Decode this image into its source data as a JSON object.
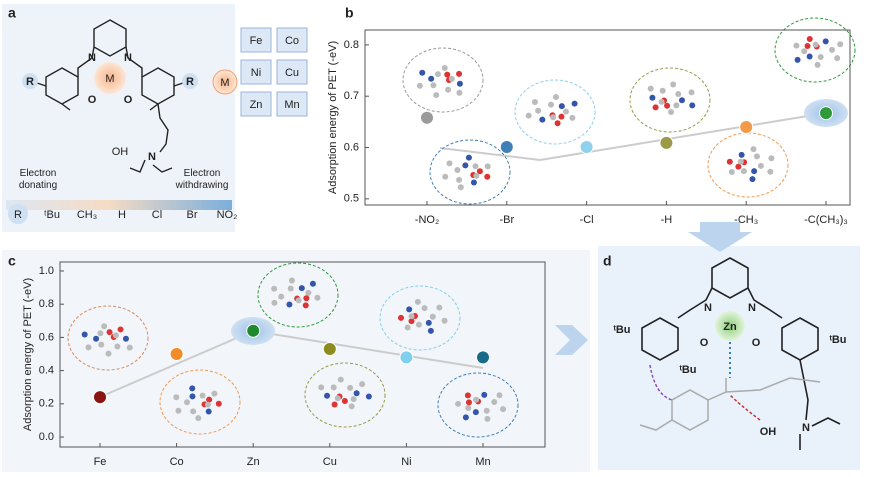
{
  "panel_labels": [
    "a",
    "b",
    "c",
    "d"
  ],
  "panel_a": {
    "metal_symbol": "M",
    "r_symbol": "R",
    "ring_o": "O",
    "ring_n": "N",
    "ammonium": "N",
    "hydroxide": "OH",
    "metals": [
      "Fe",
      "Co",
      "Ni",
      "Cu",
      "Zn",
      "Mn"
    ],
    "donating": "Electron donating",
    "withdrawing": "Electron withdrawing",
    "substituents": [
      "ᵗBu",
      "CH₃",
      "H",
      "Cl",
      "Br",
      "NO₂"
    ]
  },
  "panel_d": {
    "metal": "Zn",
    "ring_n": "N",
    "ring_o": "O",
    "tbu": "ᵗBu",
    "hydroxide": "OH",
    "ammonium": "N"
  },
  "chart_data": [
    {
      "type": "scatter",
      "y_label": "Adsorption energy of PET (-eV)",
      "categories": [
        "-NO₂",
        "-Br",
        "-Cl",
        "-H",
        "-CH₃",
        "-C(CH₃)₃"
      ],
      "values": [
        0.658,
        0.601,
        0.601,
        0.609,
        0.64,
        0.667
      ],
      "colors": [
        "#9a9a9a",
        "#3f7fb8",
        "#8fd0ea",
        "#9a9a48",
        "#f2994a",
        "#2f9a3a"
      ],
      "ylim": [
        0.488,
        0.829
      ],
      "yticks": [
        0.5,
        0.6,
        0.7,
        0.8
      ]
    },
    {
      "type": "scatter",
      "y_label": "Adsorption energy of PET (-eV)",
      "categories": [
        "Fe",
        "Co",
        "Zn",
        "Cu",
        "Ni",
        "Mn"
      ],
      "values": [
        0.24,
        0.5,
        0.64,
        0.53,
        0.48,
        0.48
      ],
      "colors": [
        "#8a1414",
        "#f28c28",
        "#1f8a2a",
        "#8c8c1e",
        "#7fd0ee",
        "#1a6a8a"
      ],
      "ylim": [
        -0.06,
        1.054
      ],
      "yticks": [
        {
          "value": 0,
          "label": "0.0"
        },
        0.2,
        0.4,
        0.6,
        0.8,
        {
          "value": 1,
          "label": "1.0"
        }
      ]
    }
  ]
}
